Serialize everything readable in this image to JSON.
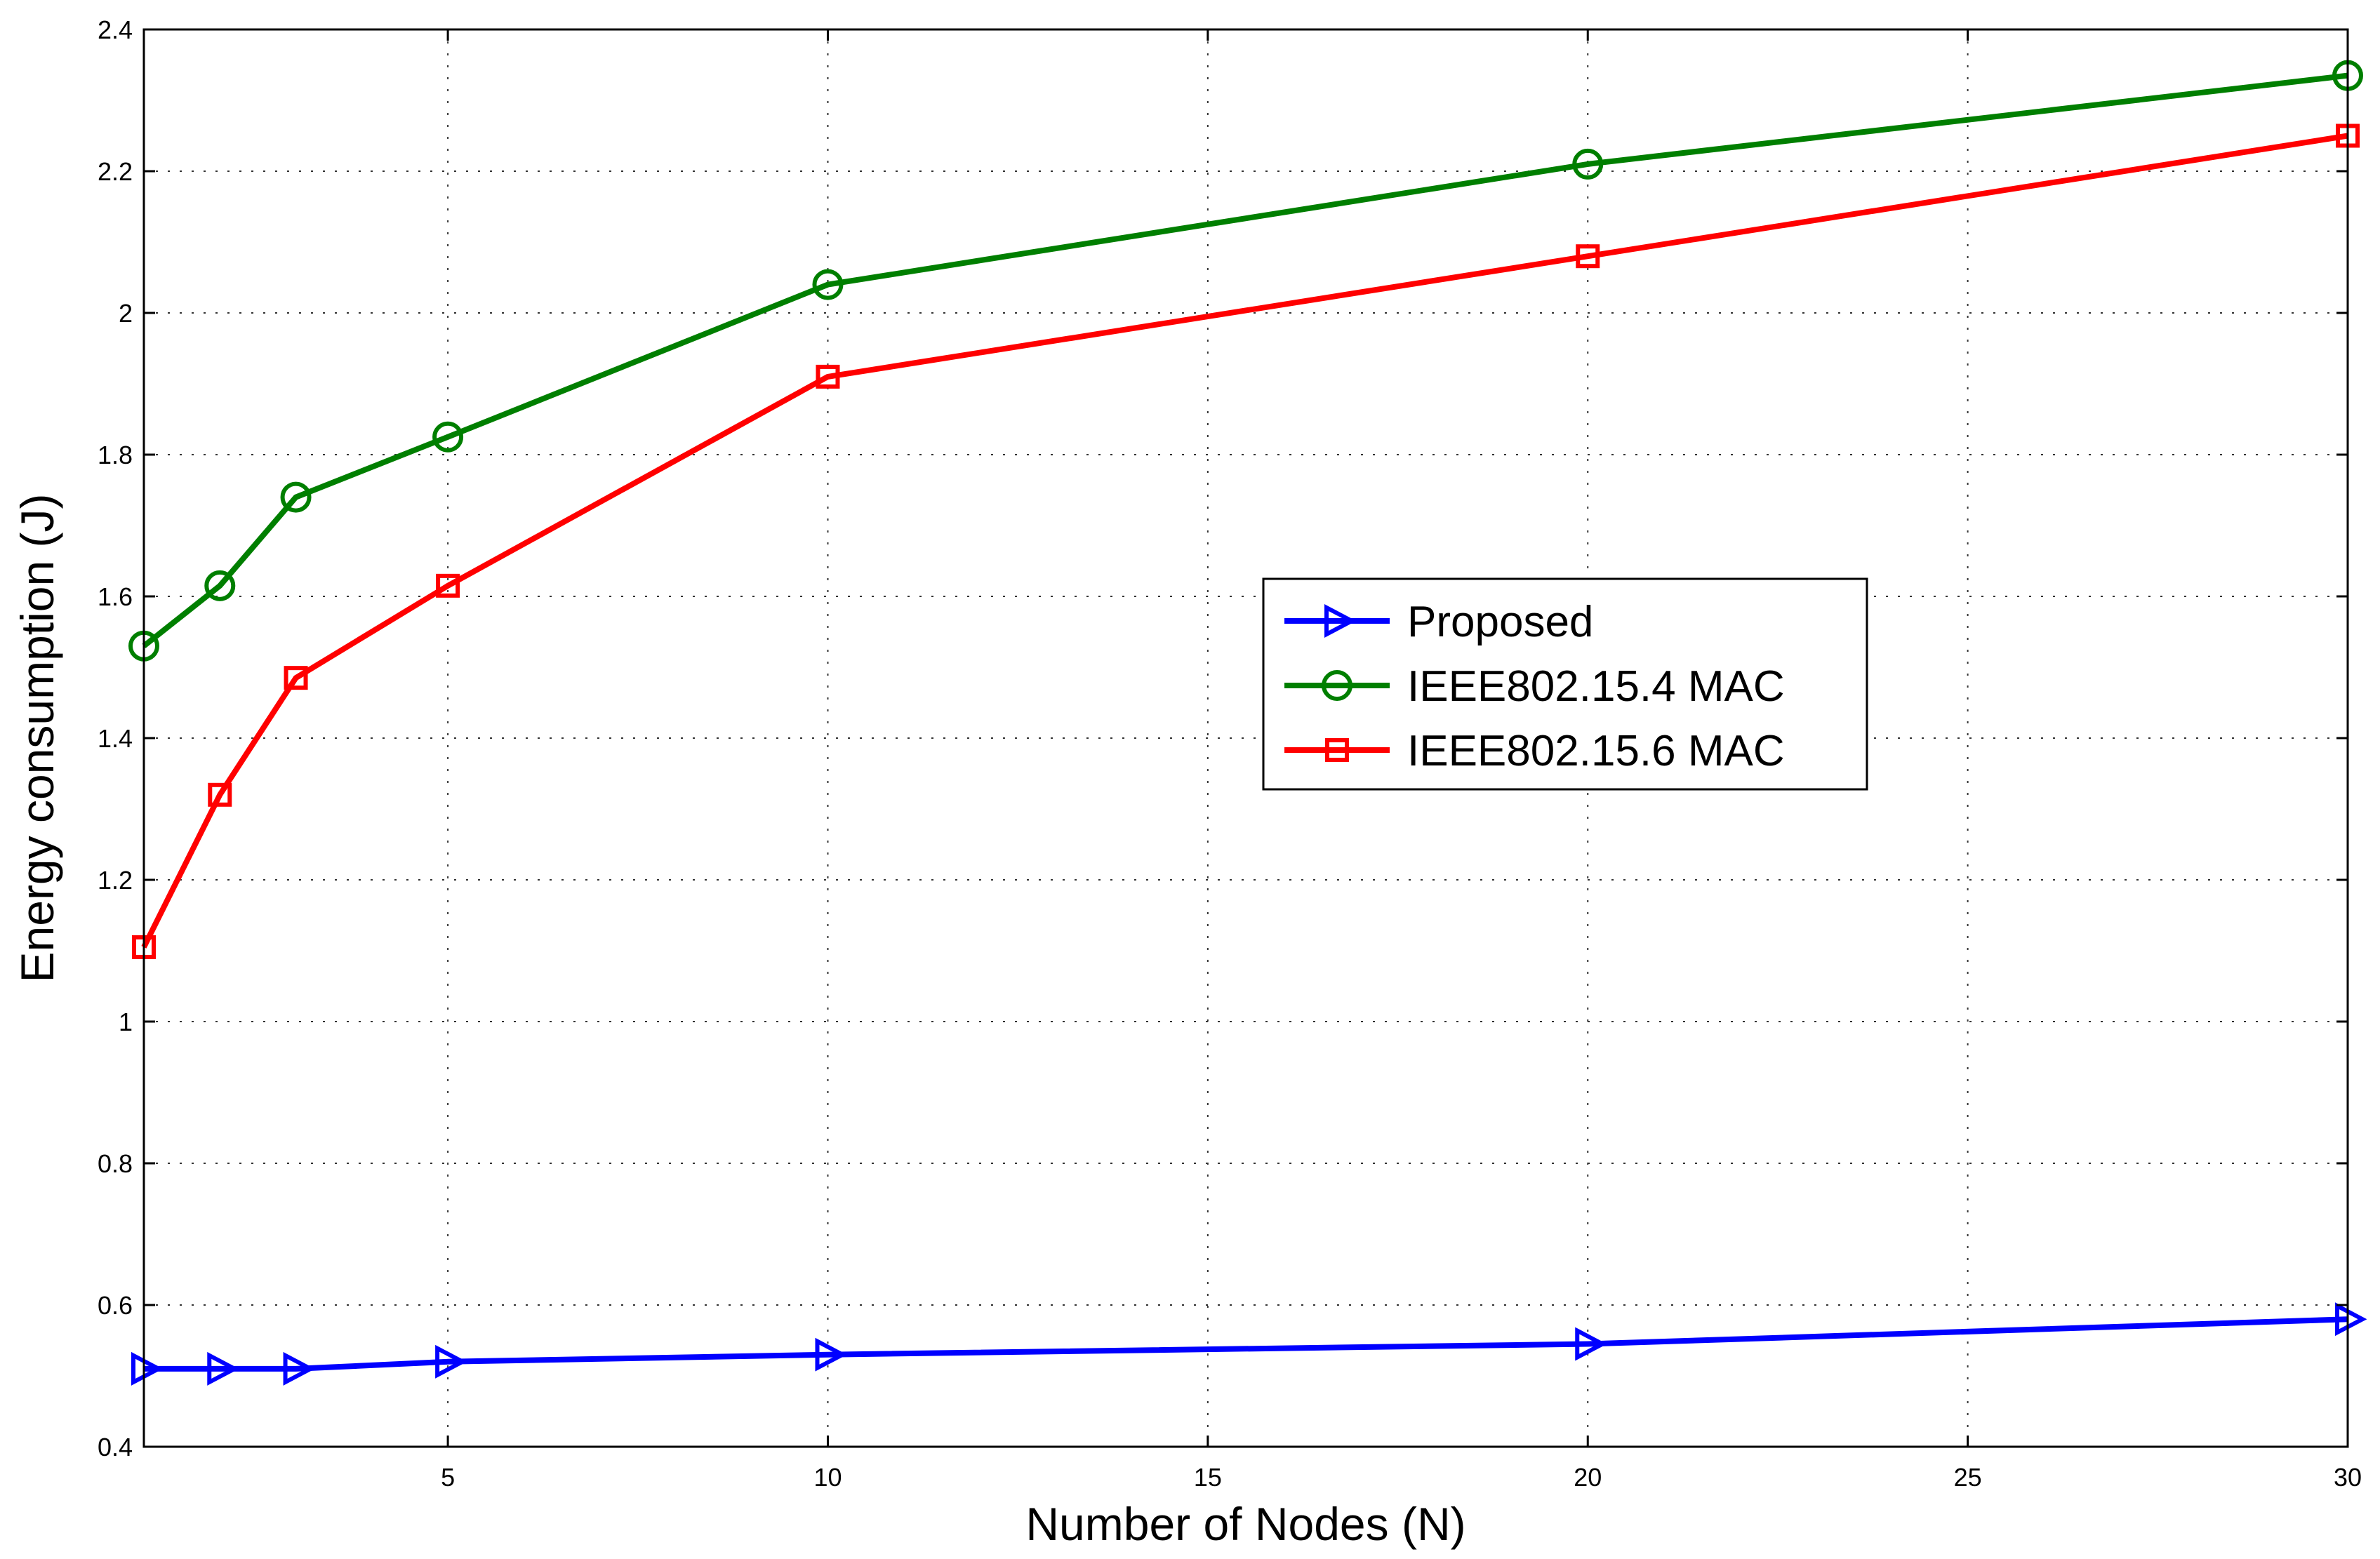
{
  "chart_data": {
    "type": "line",
    "title": "",
    "xlabel": "Number of Nodes (N)",
    "ylabel": "Energy consumption (J)",
    "xlim": [
      1,
      30
    ],
    "ylim": [
      0.4,
      2.4
    ],
    "xticks": [
      5,
      10,
      15,
      20,
      25,
      30
    ],
    "yticks": [
      0.4,
      0.6,
      0.8,
      1,
      1.2,
      1.4,
      1.6,
      1.8,
      2,
      2.2,
      2.4
    ],
    "xtick_labels": [
      "5",
      "10",
      "15",
      "20",
      "25",
      "30"
    ],
    "ytick_labels": [
      "0.4",
      "0.6",
      "0.8",
      "1",
      "1.2",
      "1.4",
      "1.6",
      "1.8",
      "2",
      "2.2",
      "2.4"
    ],
    "grid": true,
    "legend_position": "center-right",
    "x": [
      1,
      2,
      3,
      5,
      10,
      20,
      30
    ],
    "series": [
      {
        "name": "Proposed",
        "color": "#0000ff",
        "marker": "triangle-right",
        "values": [
          0.51,
          0.51,
          0.51,
          0.52,
          0.53,
          0.545,
          0.58
        ]
      },
      {
        "name": "IEEE802.15.4 MAC",
        "color": "#007f00",
        "marker": "circle",
        "values": [
          1.53,
          1.615,
          1.74,
          1.825,
          2.04,
          2.21,
          2.335
        ]
      },
      {
        "name": "IEEE802.15.6 MAC",
        "color": "#ff0000",
        "marker": "square",
        "values": [
          1.105,
          1.32,
          1.485,
          1.615,
          1.91,
          2.08,
          2.25
        ]
      }
    ]
  }
}
